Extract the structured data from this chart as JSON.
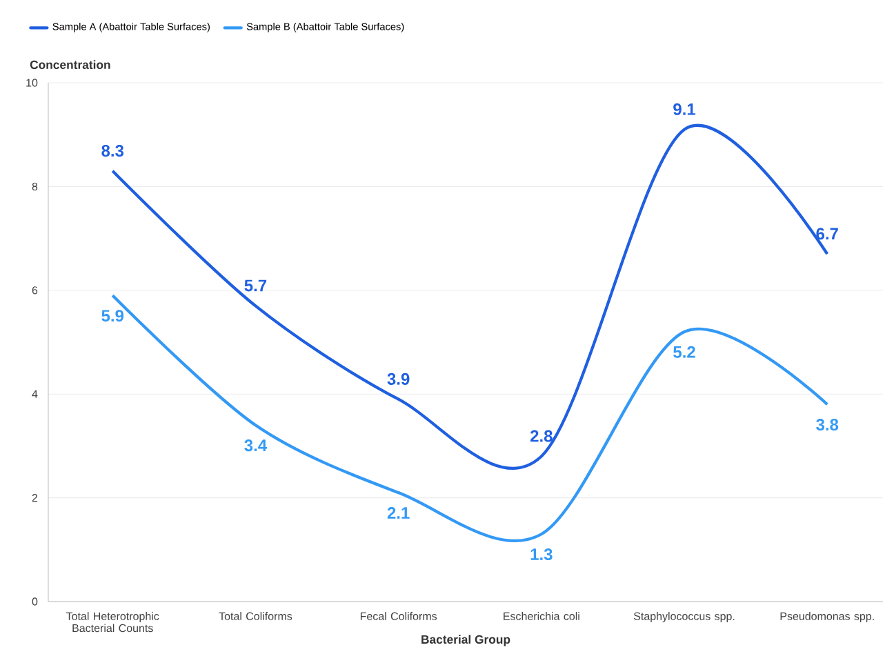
{
  "chart_data": {
    "type": "line",
    "xlabel": "Bacterial Group",
    "ylabel": "Concentration",
    "categories": [
      "Total Heterotrophic Bacterial Counts",
      "Total Coliforms",
      "Fecal Coliforms",
      "Escherichia coli",
      "Staphylococcus spp.",
      "Pseudomonas spp."
    ],
    "series": [
      {
        "name": "Sample A (Abattoir Table Surfaces)",
        "color": "#1f5fe0",
        "values": [
          8.3,
          5.7,
          3.9,
          2.8,
          9.1,
          6.7
        ]
      },
      {
        "name": "Sample B (Abattoir Table Surfaces)",
        "color": "#3399f5",
        "values": [
          5.9,
          3.4,
          2.1,
          1.3,
          5.2,
          3.8
        ]
      }
    ],
    "ylim": [
      0,
      10
    ],
    "yticks": [
      0,
      2,
      4,
      6,
      8,
      10
    ],
    "grid": "y",
    "legend": "top left",
    "data_labels": true,
    "marker": "none",
    "line_style": "solid"
  }
}
